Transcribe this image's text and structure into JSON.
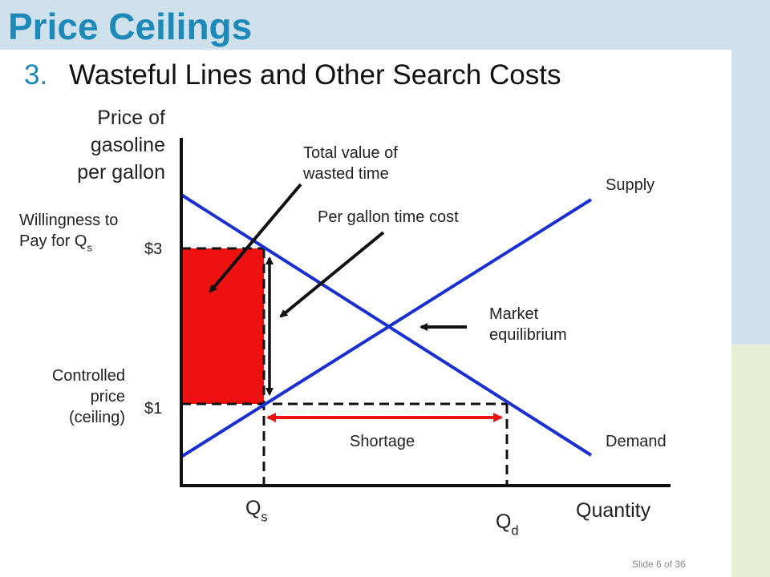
{
  "slide": {
    "title": "Price Ceilings",
    "subtitle_number": "3.",
    "subtitle": "Wasteful Lines and Other Search Costs",
    "footer": "Slide 6 of 36"
  },
  "diagram": {
    "y_axis_label": [
      "Price of",
      "gasoline",
      "per gallon"
    ],
    "x_axis_label": "Quantity",
    "price_high_label": "$3",
    "price_low_label": "$1",
    "wtp_label": [
      "Willingness to",
      "Pay for Q"
    ],
    "wtp_sub": "s",
    "ceiling_label": [
      "Controlled",
      "price",
      "(ceiling)"
    ],
    "qs_label": "Q",
    "qs_sub": "s",
    "qd_label": "Q",
    "qd_sub": "d",
    "supply_label": "Supply",
    "demand_label": "Demand",
    "equilibrium_label": [
      "Market",
      "equilibrium"
    ],
    "shortage_label": "Shortage",
    "wasted_time_label": [
      "Total value of",
      "wasted time"
    ],
    "time_cost_label": "Per gallon time cost"
  },
  "colors": {
    "title": "#1d89b8",
    "curves": "#1a2fd1",
    "wasted_area": "#ee1111",
    "shortage_arrow": "#ee1111",
    "background_blue": "#cde0ec",
    "background_green": "#e6efd6"
  }
}
